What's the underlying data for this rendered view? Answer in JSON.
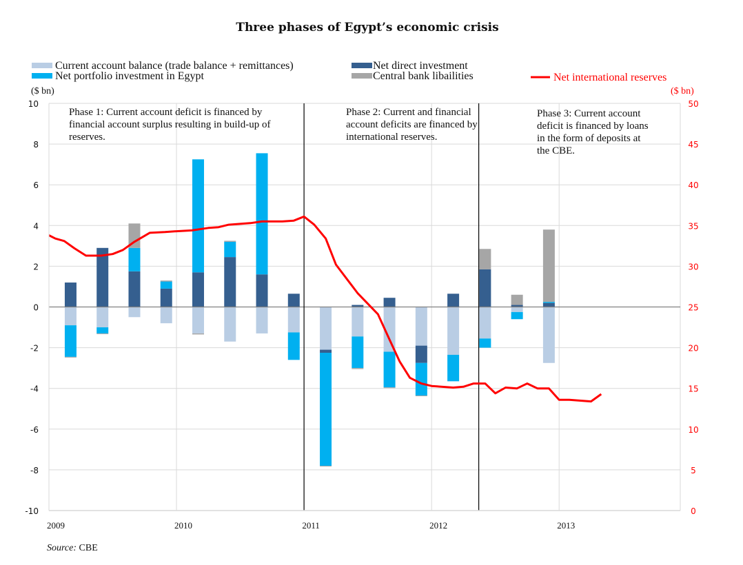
{
  "chart_data": {
    "type": "bar",
    "subtype": "stacked-bar-with-line",
    "title": "Three phases of Egypt’s economic crisis",
    "left_axis": {
      "label": "($ bn)",
      "range": [
        -10,
        10
      ],
      "ticks": [
        10,
        8,
        6,
        4,
        2,
        0,
        -2,
        -4,
        -6,
        -8,
        -10
      ]
    },
    "right_axis": {
      "label": "($ bn)",
      "range": [
        0,
        50
      ],
      "ticks": [
        50,
        45,
        40,
        35,
        30,
        25,
        20,
        15,
        10,
        5,
        0
      ]
    },
    "x_axis": {
      "ticks": [
        "2009",
        "2010",
        "2011",
        "2012",
        "2013"
      ],
      "range": [
        2009.0,
        2013.95
      ]
    },
    "grid": true,
    "legend": [
      {
        "name": "Current account balance (trade balance + remittances)",
        "color": "#b9cde4"
      },
      {
        "name": "Net direct investment",
        "color": "#355f8f"
      },
      {
        "name": "Net portfolio investment in Egypt",
        "color": "#00b0f0"
      },
      {
        "name": "Central bank libailities",
        "color": "#a6a6a6"
      },
      {
        "name": "Net international reserves",
        "color": "#ff0000",
        "type": "line",
        "axis": "right"
      }
    ],
    "bar_x": [
      2009.17,
      2009.42,
      2009.67,
      2009.92,
      2010.17,
      2010.42,
      2010.67,
      2010.92,
      2011.17,
      2011.42,
      2011.67,
      2011.92,
      2012.17,
      2012.42,
      2012.67,
      2012.92
    ],
    "series": [
      {
        "name": "Current account balance (trade balance + remittances)",
        "color": "#b9cde4",
        "values": [
          -0.9,
          -1.0,
          -0.5,
          -0.8,
          -1.3,
          -1.7,
          -1.3,
          -1.25,
          -2.1,
          -1.45,
          -2.2,
          -1.9,
          -2.35,
          -1.55,
          -0.25,
          -2.75
        ]
      },
      {
        "name": "Net direct investment",
        "color": "#355f8f",
        "values": [
          1.2,
          2.9,
          1.75,
          0.9,
          1.7,
          2.45,
          1.6,
          0.65,
          -0.15,
          0.1,
          0.45,
          -0.85,
          0.65,
          1.85,
          0.1,
          0.2
        ]
      },
      {
        "name": "Net portfolio investment in Egypt",
        "color": "#00b0f0",
        "values": [
          -1.55,
          -0.3,
          1.15,
          0.35,
          5.55,
          0.75,
          5.95,
          -1.35,
          -5.55,
          -1.55,
          -1.75,
          -1.6,
          -1.3,
          -0.45,
          -0.35,
          0.05
        ]
      },
      {
        "name": "Central bank libailities",
        "color": "#a6a6a6",
        "values": [
          -0.03,
          -0.03,
          1.2,
          0.05,
          -0.05,
          0.05,
          0.0,
          0.0,
          -0.03,
          -0.05,
          -0.03,
          -0.03,
          0.0,
          1.0,
          0.5,
          3.55
        ]
      }
    ],
    "line": {
      "name": "Net international reserves",
      "color": "#ff0000",
      "axis": "right",
      "x": [
        2009.0,
        2009.05,
        2009.12,
        2009.2,
        2009.29,
        2009.41,
        2009.5,
        2009.58,
        2009.67,
        2009.79,
        2009.91,
        2010.0,
        2010.12,
        2010.25,
        2010.33,
        2010.41,
        2010.5,
        2010.58,
        2010.67,
        2010.75,
        2010.83,
        2010.92,
        2011.0,
        2011.08,
        2011.17,
        2011.25,
        2011.42,
        2011.58,
        2011.67,
        2011.75,
        2011.83,
        2011.92,
        2012.0,
        2012.17,
        2012.25,
        2012.33,
        2012.42,
        2012.5,
        2012.58,
        2012.67,
        2012.75,
        2012.83,
        2012.92,
        2013.0,
        2013.08,
        2013.25,
        2013.33
      ],
      "values": [
        33.8,
        33.4,
        33.1,
        32.2,
        31.3,
        31.3,
        31.5,
        32.0,
        33.0,
        34.1,
        34.2,
        34.3,
        34.4,
        34.7,
        34.8,
        35.1,
        35.2,
        35.3,
        35.5,
        35.5,
        35.5,
        35.6,
        36.1,
        35.1,
        33.4,
        30.2,
        26.7,
        24.1,
        21.0,
        18.3,
        16.3,
        15.6,
        15.3,
        15.1,
        15.2,
        15.6,
        15.6,
        14.4,
        15.1,
        15.0,
        15.6,
        15.0,
        15.0,
        13.6,
        13.6,
        13.4,
        14.3
      ]
    },
    "phase_dividers_x": [
      2011.0,
      2012.37
    ],
    "annotations": [
      {
        "phase": 1,
        "text": [
          "Phase 1: Current account deficit is financed by",
          "financial account surplus resulting in build-up of",
          "reserves."
        ]
      },
      {
        "phase": 2,
        "text": [
          "Phase 2: Current and financial",
          "account deficits are financed by",
          "international reserves."
        ]
      },
      {
        "phase": 3,
        "text": [
          "Phase 3: Current account",
          "deficit is financed by loans",
          "in the form of deposits at",
          "the CBE."
        ]
      }
    ],
    "source_label": "Source:",
    "source_value": " CBE"
  }
}
